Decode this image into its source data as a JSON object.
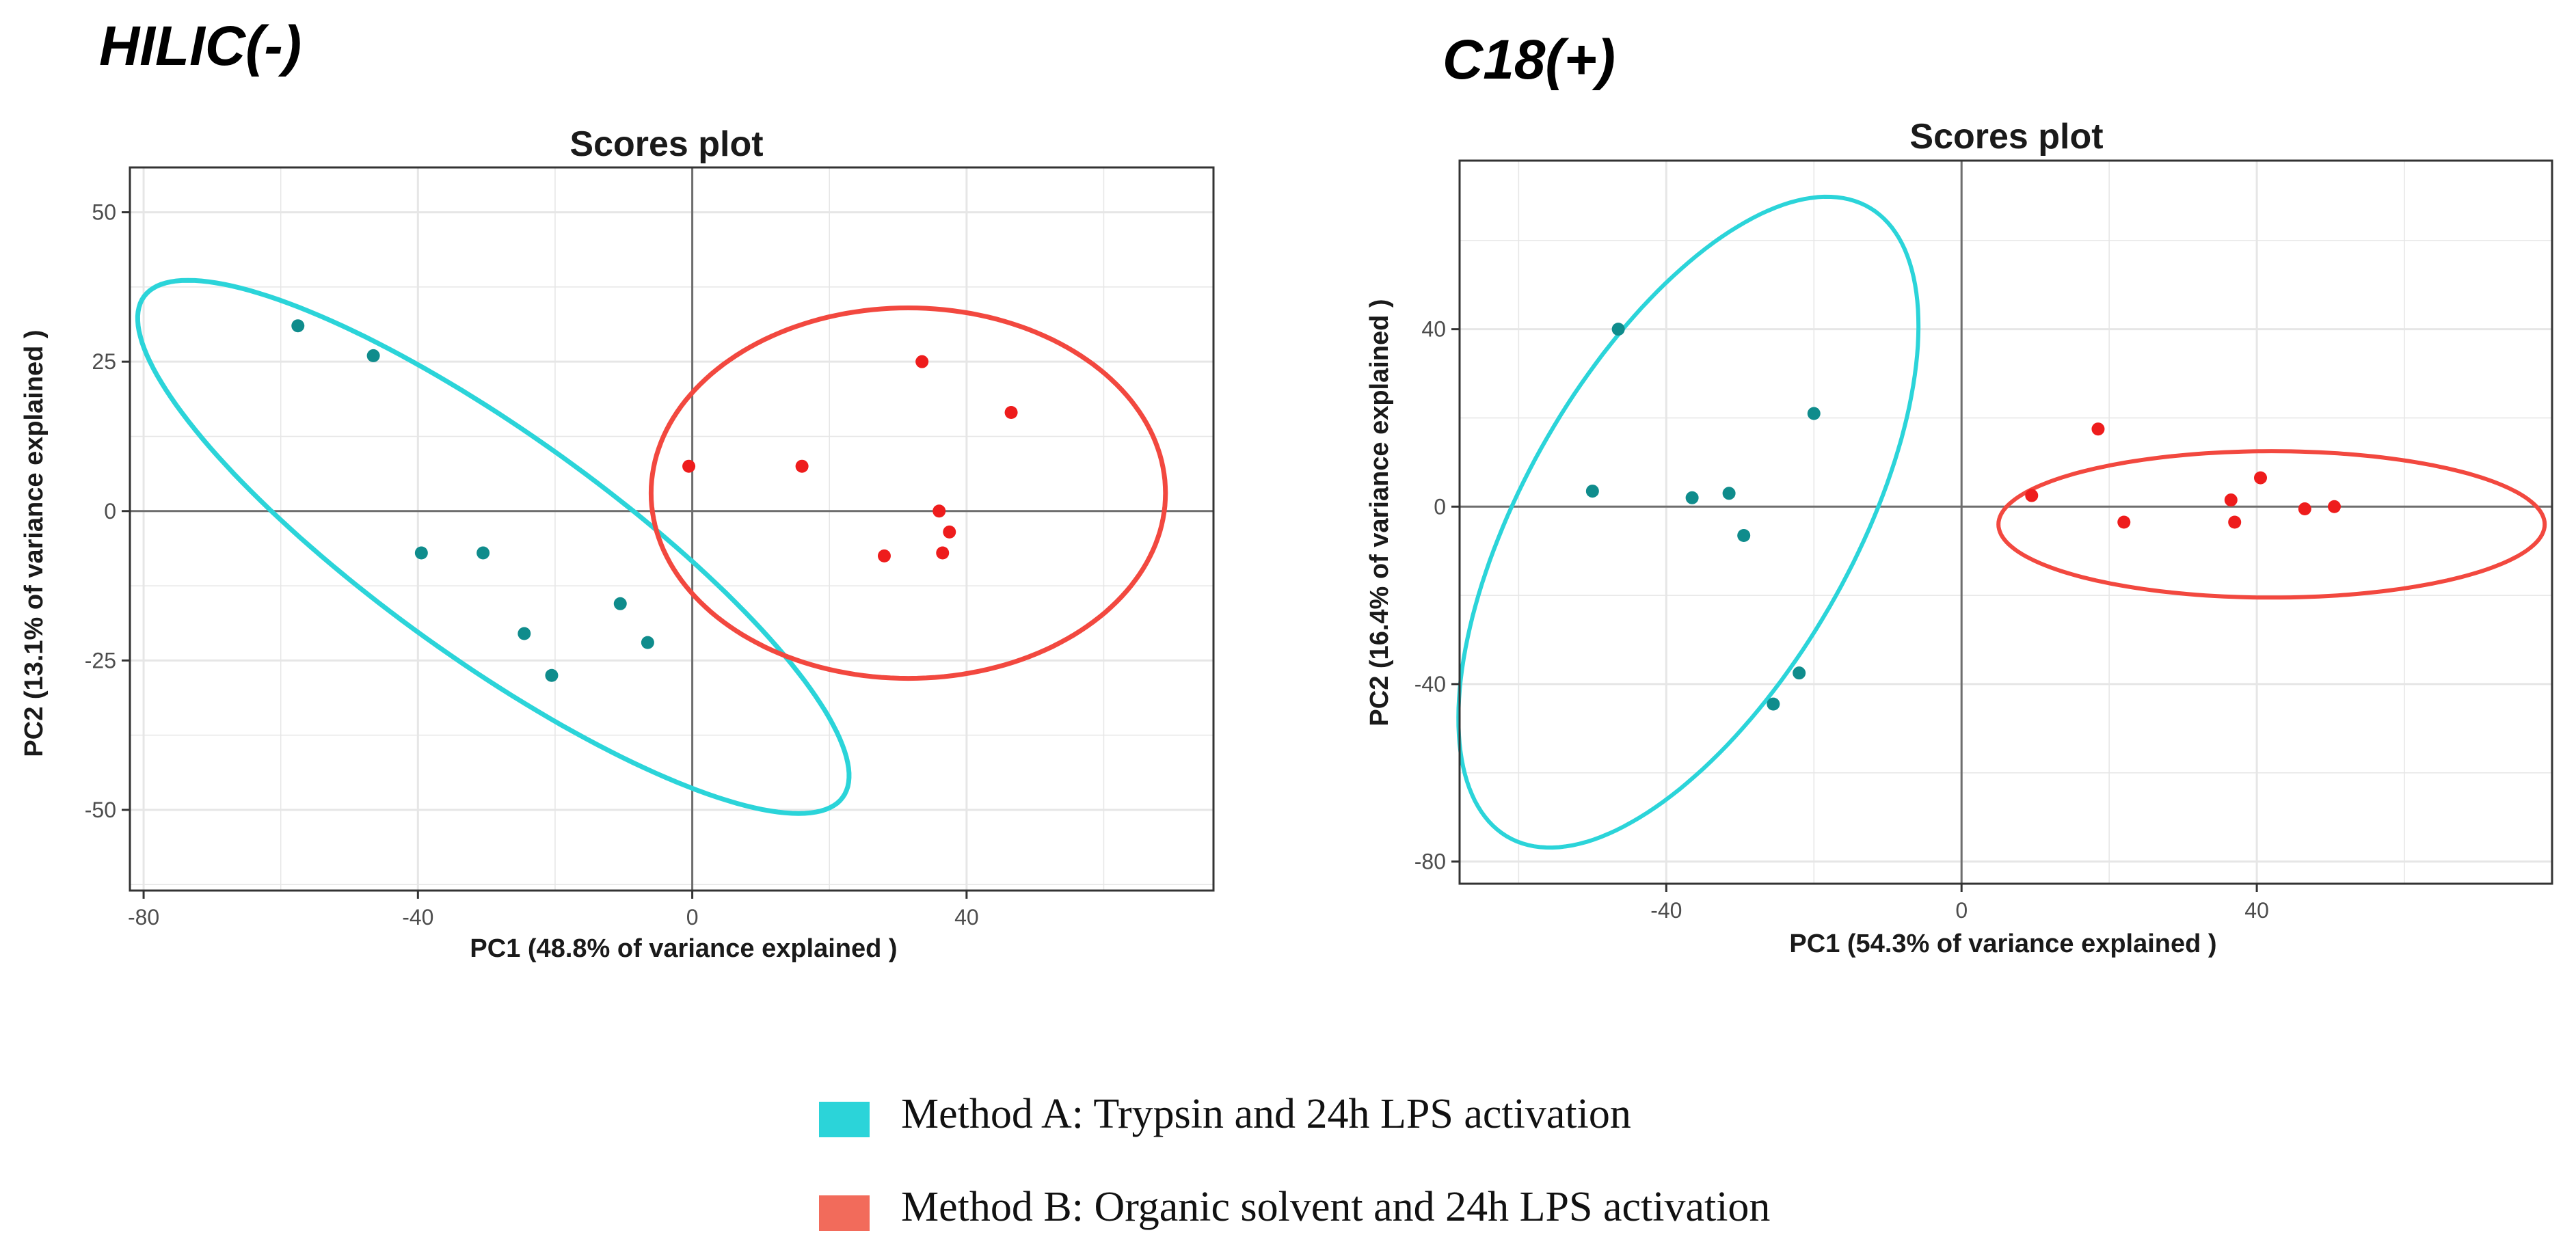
{
  "colors": {
    "method_a_point": "#0f8c8c",
    "method_a_ellipse": "#2bd4d9",
    "method_b_point": "#ee1c1c",
    "method_b_ellipse": "#f2483f",
    "legend_a": "#2bd4d9",
    "legend_b": "#f26b5b",
    "grid": "#e6e6e6",
    "zero_line": "#6e6e6e"
  },
  "chart_data": [
    {
      "type": "scatter",
      "panel_label": "HILIC(-)",
      "title": "Scores plot",
      "xlabel": "PC1 (48.8% of variance explained )",
      "ylabel": "PC2 (13.1% of variance explained )",
      "xlim": [
        -82,
        76
      ],
      "ylim": [
        -63.5,
        57.5
      ],
      "xticks": [
        -80,
        -40,
        0,
        40
      ],
      "xtick_labels": [
        "-80",
        "-40",
        "0",
        "40"
      ],
      "yticks": [
        50,
        25,
        0,
        -25,
        -50
      ],
      "ytick_labels": [
        "50",
        "25",
        "0",
        "-25",
        "-50"
      ],
      "series": [
        {
          "name": "Method A",
          "color_key": "method_a_point",
          "x": [
            -57.5,
            -46.5,
            -39.5,
            -30.5,
            -24.5,
            -20.5,
            -10.5,
            -6.5
          ],
          "y": [
            31,
            26,
            -7,
            -7,
            -20.5,
            -27.5,
            -15.5,
            -22
          ]
        },
        {
          "name": "Method B",
          "color_key": "method_b_point",
          "x": [
            -0.5,
            16,
            28,
            33.5,
            36,
            36.5,
            37.5,
            46.5
          ],
          "y": [
            7.5,
            7.5,
            -7.5,
            25,
            0,
            -7,
            -3.5,
            16.5
          ]
        }
      ],
      "ellipses": [
        {
          "name": "Method A",
          "color_key": "method_a_ellipse",
          "cx": -29,
          "cy": -6,
          "rx": 66,
          "ry": 18,
          "angle": -40
        },
        {
          "name": "Method B",
          "color_key": "method_b_ellipse",
          "cx": 31.5,
          "cy": 3,
          "rx": 37.5,
          "ry": 31,
          "angle": 0
        }
      ]
    },
    {
      "type": "scatter",
      "panel_label": "C18(+)",
      "title": "Scores plot",
      "xlabel": "PC1 (54.3% of variance explained )",
      "ylabel": "PC2 (16.4% of variance explained )",
      "xlim": [
        -68,
        80
      ],
      "ylim": [
        -85,
        78
      ],
      "xticks": [
        -40,
        0,
        40
      ],
      "xtick_labels": [
        "-40",
        "0",
        "40"
      ],
      "yticks": [
        40,
        0,
        -40,
        -80
      ],
      "ytick_labels": [
        "40",
        "0",
        "-40",
        "-80"
      ],
      "series": [
        {
          "name": "Method A",
          "color_key": "method_a_point",
          "x": [
            -50,
            -46.5,
            -36.5,
            -31.5,
            -29.5,
            -25.5,
            -22,
            -20
          ],
          "y": [
            3.5,
            40,
            2,
            3,
            -6.5,
            -44.5,
            -37.5,
            21
          ]
        },
        {
          "name": "Method B",
          "color_key": "method_b_point",
          "x": [
            9.5,
            18.5,
            22,
            36.5,
            37,
            40.5,
            46.5,
            50.5
          ],
          "y": [
            2.5,
            17.5,
            -3.5,
            1.5,
            -3.5,
            6.5,
            -0.5,
            0
          ]
        }
      ],
      "ellipses": [
        {
          "name": "Method A",
          "color_key": "method_a_ellipse",
          "cx": -37,
          "cy": -3.5,
          "rx": 76,
          "ry": 24,
          "angle": 74
        },
        {
          "name": "Method B",
          "color_key": "method_b_ellipse",
          "cx": 42,
          "cy": -4,
          "rx": 37,
          "ry": 16.5,
          "angle": 0
        }
      ]
    }
  ],
  "legend": {
    "items": [
      {
        "label": "Method A: Trypsin and 24h LPS activation",
        "color_key": "legend_a"
      },
      {
        "label": "Method B: Organic solvent and 24h LPS activation",
        "color_key": "legend_b"
      }
    ]
  }
}
